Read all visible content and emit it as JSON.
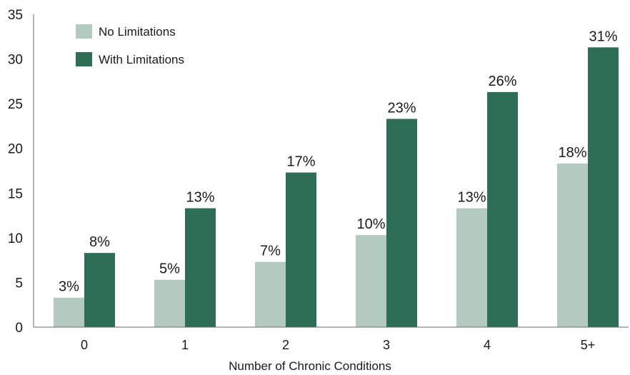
{
  "chart_data": {
    "type": "bar",
    "title": "",
    "xlabel": "Number of Chronic Conditions",
    "ylabel": "",
    "categories": [
      "0",
      "1",
      "2",
      "3",
      "4",
      "5+"
    ],
    "ylim": [
      0,
      35
    ],
    "yticks": [
      0,
      5,
      10,
      15,
      20,
      25,
      30,
      35
    ],
    "grid": false,
    "legend_position": "top-left",
    "series": [
      {
        "name": "No Limitations",
        "color": "#b3cac0",
        "values": [
          3.3,
          5.3,
          7.3,
          10.3,
          13.3,
          18.3
        ],
        "labels": [
          "3%",
          "5%",
          "7%",
          "10%",
          "13%",
          "18%"
        ]
      },
      {
        "name": "With Limitations",
        "color": "#2f6e56",
        "values": [
          8.3,
          13.3,
          17.3,
          23.3,
          26.3,
          31.3
        ],
        "labels": [
          "8%",
          "13%",
          "17%",
          "23%",
          "26%",
          "31%"
        ]
      }
    ]
  }
}
